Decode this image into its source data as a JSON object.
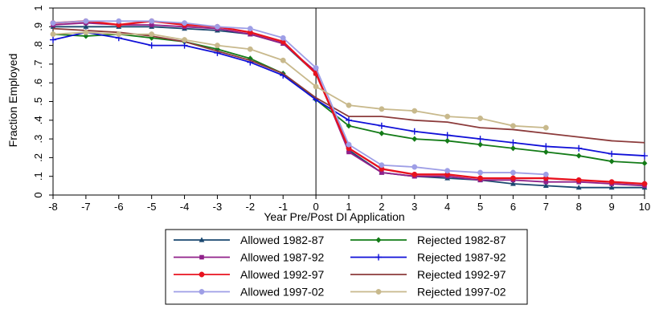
{
  "chart_data": {
    "type": "line",
    "xlabel": "Year Pre/Post DI Application",
    "ylabel": "Fraction Employed",
    "x": [
      -8,
      -7,
      -6,
      -5,
      -4,
      -3,
      -2,
      -1,
      0,
      1,
      2,
      3,
      4,
      5,
      6,
      7,
      8,
      9,
      10
    ],
    "xlim": [
      -8,
      10
    ],
    "ylim": [
      0,
      1
    ],
    "yticks": [
      0,
      0.1,
      0.2,
      0.3,
      0.4,
      0.5,
      0.6,
      0.7,
      0.8,
      0.9,
      1
    ],
    "ytick_labels": [
      "0",
      ".1",
      ".2",
      ".3",
      ".4",
      ".5",
      ".6",
      ".7",
      ".8",
      ".9",
      "1"
    ],
    "xtick_labels": [
      "-8",
      "-7",
      "-6",
      "-5",
      "-4",
      "-3",
      "-2",
      "-1",
      "0",
      "1",
      "2",
      "3",
      "4",
      "5",
      "6",
      "7",
      "8",
      "9",
      "10"
    ],
    "reference_line_x": 0,
    "grid": false,
    "legend_position": "bottom",
    "series": [
      {
        "name": "Allowed 1982-87",
        "color": "#1a476f",
        "marker": "triangle",
        "values": [
          0.9,
          0.9,
          0.9,
          0.9,
          0.89,
          0.88,
          0.86,
          0.81,
          0.65,
          0.24,
          0.12,
          0.1,
          0.09,
          0.08,
          0.06,
          0.05,
          0.04,
          0.04,
          0.04
        ]
      },
      {
        "name": "Rejected 1982-87",
        "color": "#137b17",
        "marker": "diamond",
        "values": [
          0.86,
          0.85,
          0.86,
          0.84,
          0.82,
          0.78,
          0.73,
          0.65,
          0.51,
          0.37,
          0.33,
          0.3,
          0.29,
          0.27,
          0.25,
          0.23,
          0.21,
          0.18,
          0.17
        ]
      },
      {
        "name": "Allowed 1987-92",
        "color": "#90208a",
        "marker": "square",
        "values": [
          0.91,
          0.92,
          0.91,
          0.91,
          0.9,
          0.89,
          0.86,
          0.81,
          0.66,
          0.23,
          0.12,
          0.1,
          0.1,
          0.08,
          0.08,
          0.07,
          0.07,
          0.06,
          0.05
        ]
      },
      {
        "name": "Rejected 1987-92",
        "color": "#1010d8",
        "marker": "plus",
        "values": [
          0.83,
          0.87,
          0.84,
          0.8,
          0.8,
          0.76,
          0.71,
          0.64,
          0.51,
          0.4,
          0.37,
          0.34,
          0.32,
          0.3,
          0.28,
          0.26,
          0.25,
          0.22,
          0.21
        ]
      },
      {
        "name": "Allowed 1992-97",
        "color": "#e8121f",
        "marker": "circle",
        "values": [
          0.92,
          0.93,
          0.91,
          0.93,
          0.91,
          0.9,
          0.87,
          0.82,
          0.65,
          0.25,
          0.14,
          0.11,
          0.11,
          0.09,
          0.09,
          0.09,
          0.08,
          0.07,
          0.06
        ]
      },
      {
        "name": "Rejected 1992-97",
        "color": "#8c3b3b",
        "marker": "none",
        "values": [
          0.89,
          0.88,
          0.87,
          0.85,
          0.82,
          0.77,
          0.72,
          0.65,
          0.52,
          0.42,
          0.42,
          0.4,
          0.39,
          0.36,
          0.35,
          0.33,
          0.31,
          0.29,
          0.28
        ]
      },
      {
        "name": "Allowed 1997-02",
        "color": "#9e9ee6",
        "marker": "circle",
        "values": [
          0.92,
          0.93,
          0.93,
          0.93,
          0.92,
          0.9,
          0.89,
          0.84,
          0.68,
          0.27,
          0.16,
          0.15,
          0.13,
          0.12,
          0.12,
          0.11,
          null,
          null,
          null
        ]
      },
      {
        "name": "Rejected 1997-02",
        "color": "#c8b98c",
        "marker": "circle",
        "values": [
          0.86,
          0.87,
          0.86,
          0.86,
          0.83,
          0.8,
          0.78,
          0.72,
          0.58,
          0.48,
          0.46,
          0.45,
          0.42,
          0.41,
          0.37,
          0.36,
          null,
          null,
          null
        ]
      }
    ]
  }
}
